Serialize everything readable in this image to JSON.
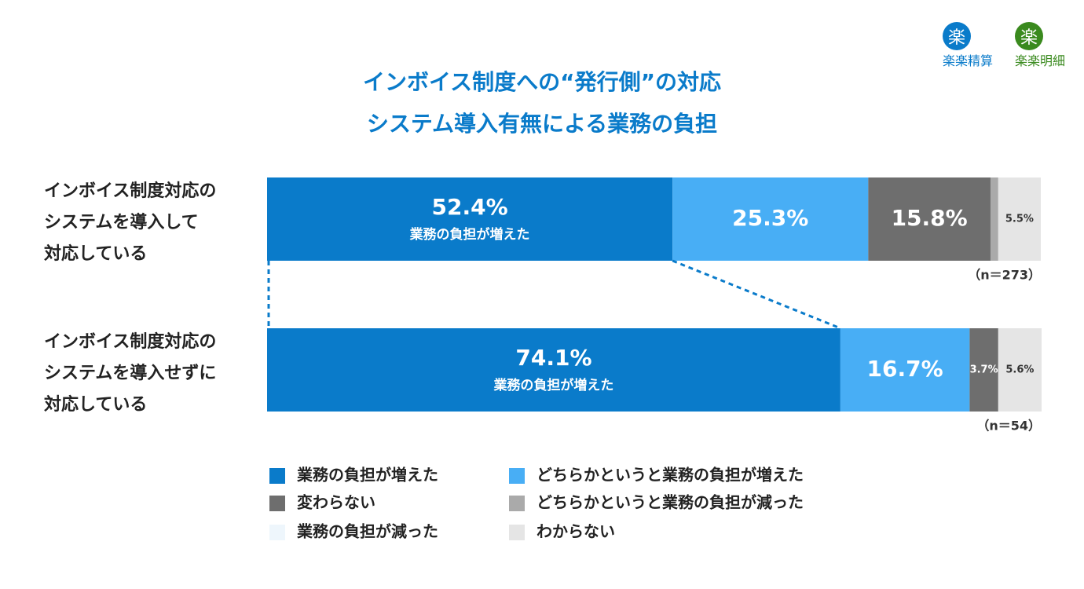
{
  "chart_data": {
    "type": "stacked-bar-100",
    "title": "インボイス制度への“発行側”の対応\nシステム導入有無による業務の負担",
    "logos": [
      {
        "icon": "楽",
        "name": "楽楽精算",
        "color": "#0a7bca"
      },
      {
        "icon": "楽",
        "name": "楽楽明細",
        "color": "#3a8a1e"
      }
    ],
    "categories": [
      "インボイス制度対応の\nシステムを導入して\n対応している",
      "インボイス制度対応の\nシステムを導入せずに\n対応している"
    ],
    "sample_labels": [
      "（n＝273）",
      "（n＝54）"
    ],
    "xlim": [
      0,
      100
    ],
    "series": [
      {
        "name": "業務の負担が増えた",
        "color": "#0a7bca",
        "values": [
          52.4,
          74.1
        ],
        "value_labels": [
          "52.4%",
          "74.1%"
        ]
      },
      {
        "name": "どちらかというと業務の負担が増えた",
        "color": "#48aef5",
        "values": [
          25.3,
          16.7
        ],
        "value_labels": [
          "25.3%",
          "16.7%"
        ]
      },
      {
        "name": "変わらない",
        "color": "#6e6e6e",
        "values": [
          15.8,
          3.7
        ],
        "value_labels": [
          "15.8%",
          "3.7%"
        ]
      },
      {
        "name": "どちらかというと業務の負担が減った",
        "color": "#aaaaaa",
        "values": [
          1.0,
          0
        ],
        "value_labels": [
          null,
          null
        ]
      },
      {
        "name": "業務の負担が減った",
        "color": "#eef6fc",
        "values": [
          0,
          0
        ],
        "value_labels": [
          null,
          null
        ]
      },
      {
        "name": "わからない",
        "color": "#e5e5e5",
        "values": [
          5.5,
          5.6
        ],
        "value_labels": [
          "5.5%",
          "5.6%"
        ]
      }
    ]
  }
}
